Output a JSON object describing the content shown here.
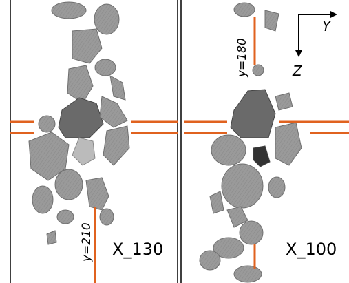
{
  "panels": [
    {
      "label": "X_130",
      "line_label": "y=210"
    },
    {
      "label": "X_100",
      "line_label": "y=180"
    }
  ],
  "axes": {
    "horizontal": "Y",
    "vertical": "Z"
  }
}
